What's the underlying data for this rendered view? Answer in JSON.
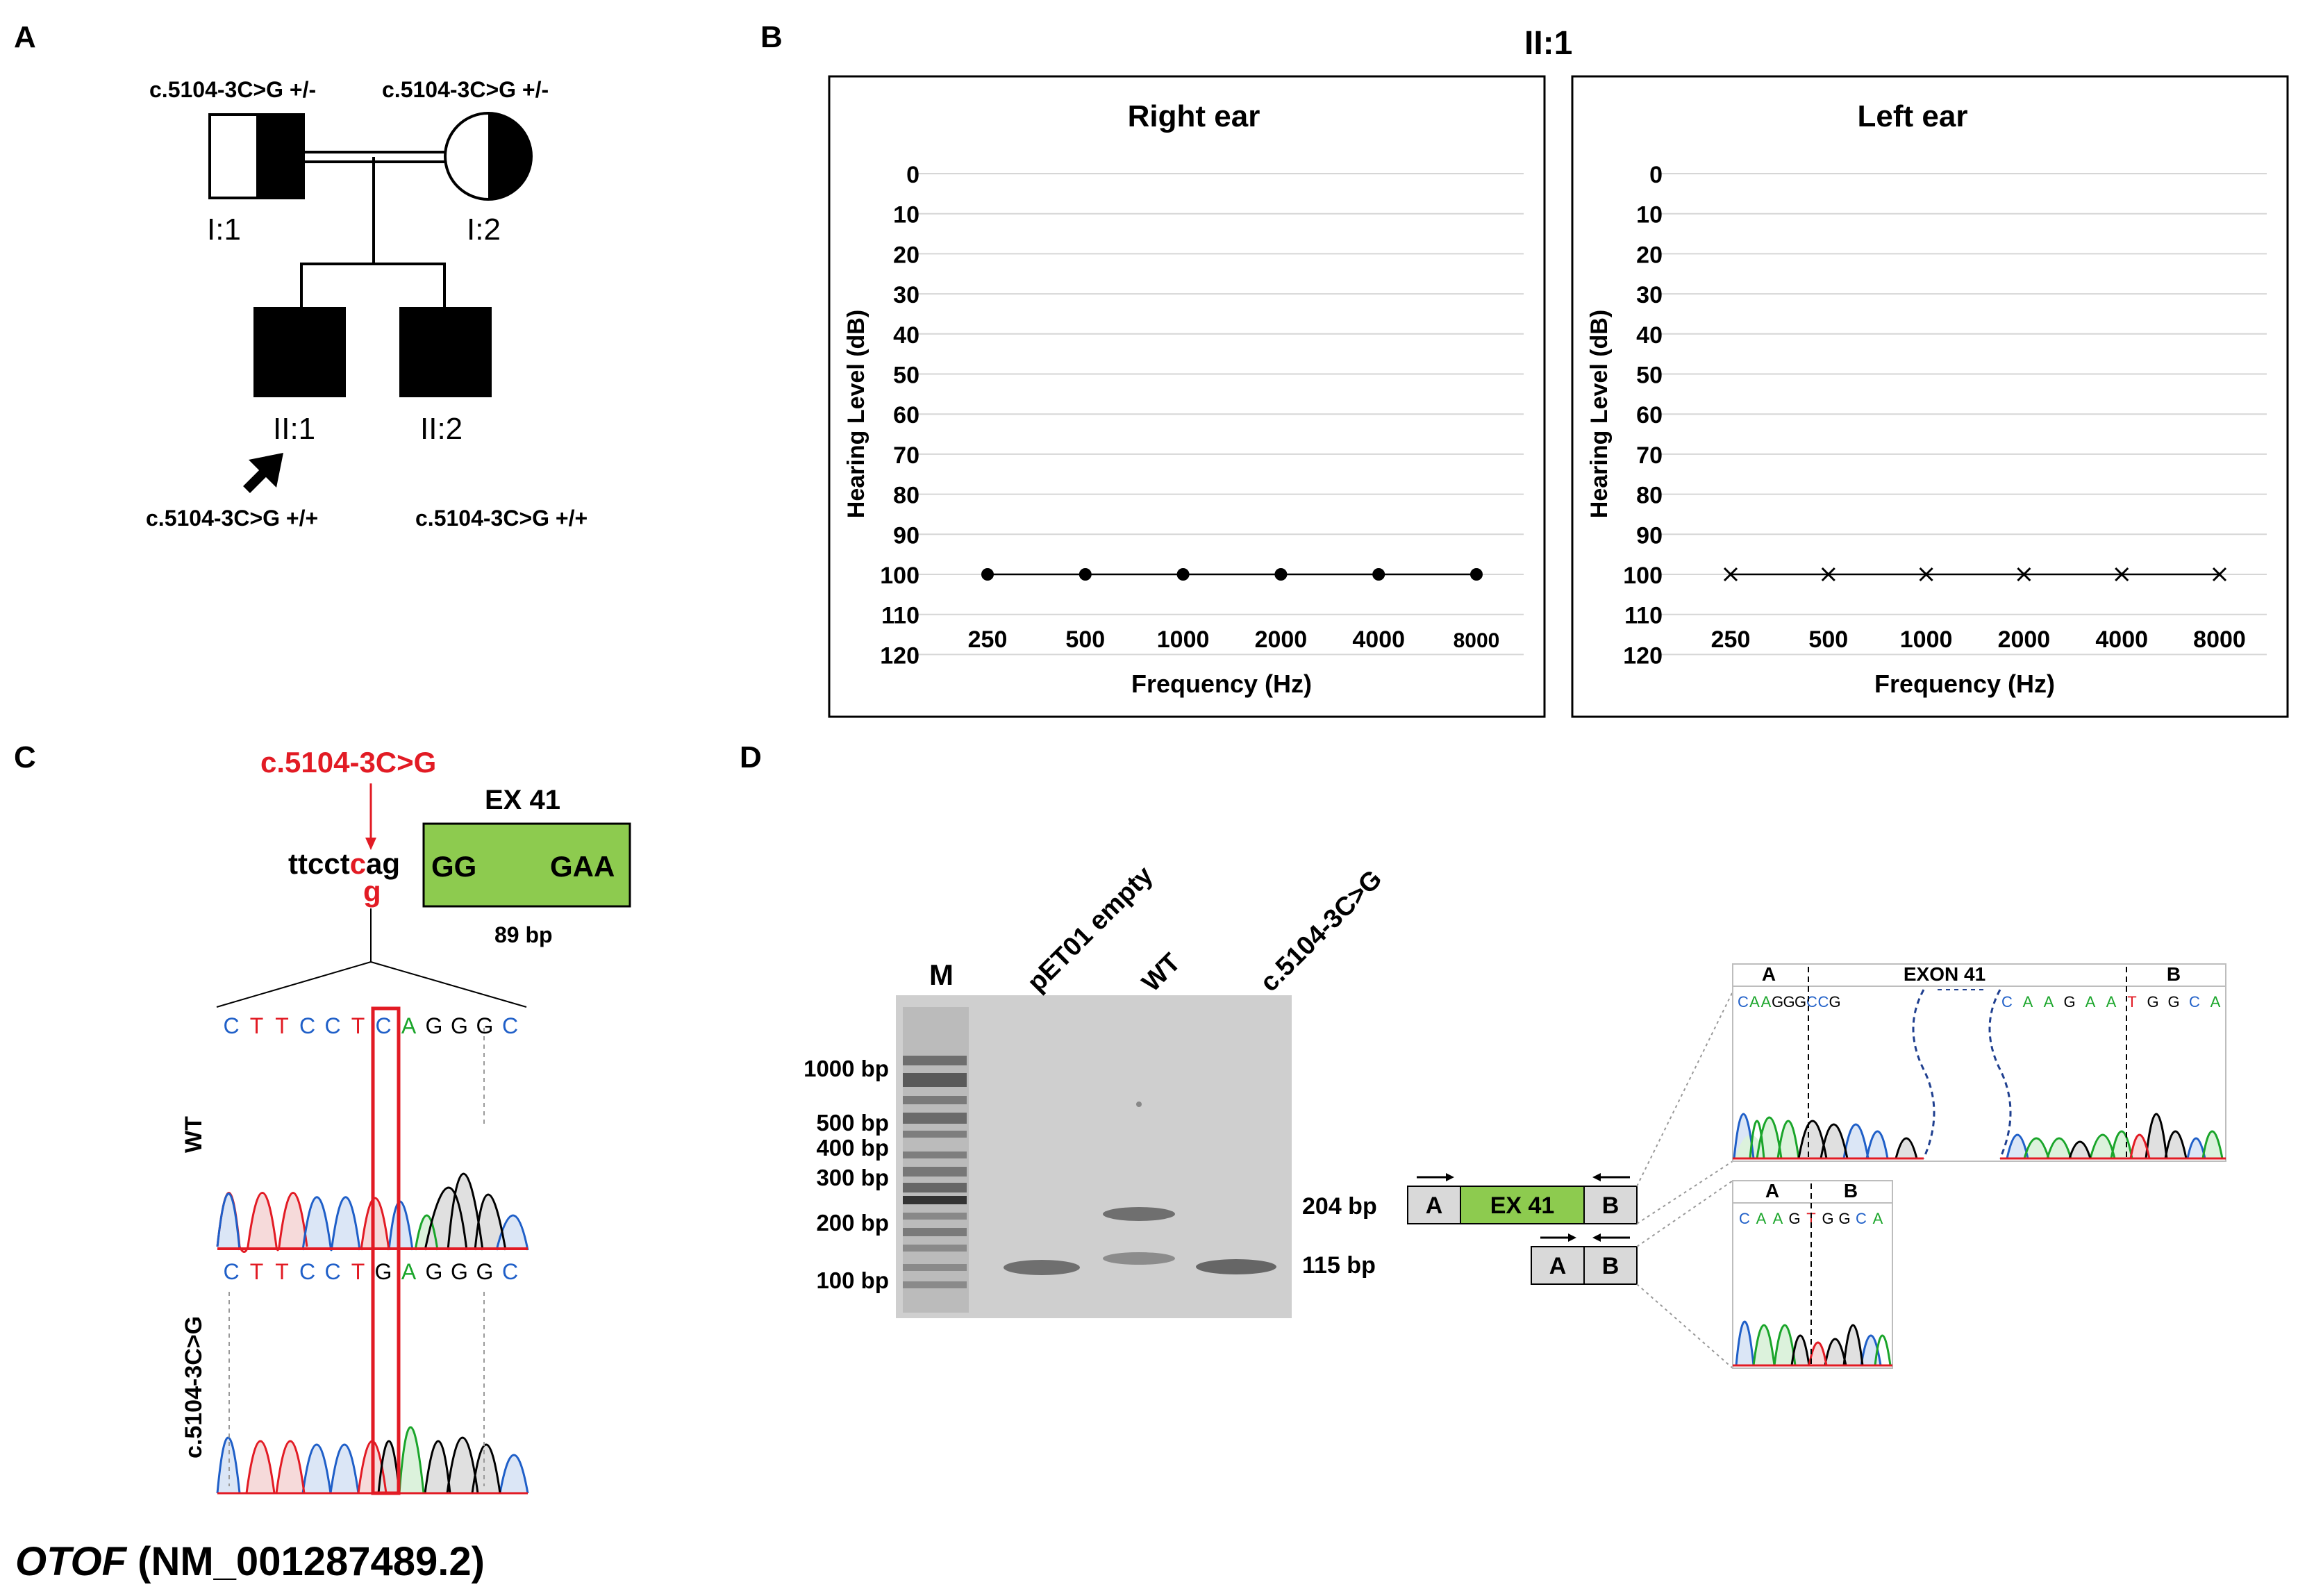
{
  "panelA": {
    "letter": "A",
    "genotype_i1": "c.5104-3C>G +/-",
    "genotype_i2": "c.5104-3C>G +/-",
    "label_i1": "I:1",
    "label_i2": "I:2",
    "label_ii1": "II:1",
    "label_ii2": "II:2",
    "genotype_ii1": "c.5104-3C>G +/+",
    "genotype_ii2": "c.5104-3C>G +/+"
  },
  "panelB": {
    "letter": "B",
    "title": "II:1",
    "left_chart_title": "Right ear",
    "right_chart_title": "Left ear"
  },
  "chart_data": [
    {
      "type": "line",
      "title": "Right ear",
      "xlabel": "Frequency (Hz)",
      "ylabel": "Hearing Level (dB)",
      "categories": [
        "250",
        "500",
        "1000",
        "2000",
        "4000",
        "8000"
      ],
      "yticks": [
        "0",
        "10",
        "20",
        "30",
        "40",
        "50",
        "60",
        "70",
        "80",
        "90",
        "100",
        "110",
        "120"
      ],
      "ylim": [
        0,
        120
      ],
      "yinverted": true,
      "marker": "circle",
      "series": [
        {
          "name": "Right ear",
          "values": [
            100,
            100,
            100,
            100,
            100,
            100
          ]
        }
      ]
    },
    {
      "type": "line",
      "title": "Left ear",
      "xlabel": "Frequency (Hz)",
      "ylabel": "Hearing Level (dB)",
      "categories": [
        "250",
        "500",
        "1000",
        "2000",
        "4000",
        "8000"
      ],
      "yticks": [
        "0",
        "10",
        "20",
        "30",
        "40",
        "50",
        "60",
        "70",
        "80",
        "90",
        "100",
        "110",
        "120"
      ],
      "ylim": [
        0,
        120
      ],
      "yinverted": true,
      "marker": "cross",
      "series": [
        {
          "name": "Left ear",
          "values": [
            100,
            100,
            100,
            100,
            100,
            100
          ]
        }
      ]
    }
  ],
  "panelC": {
    "letter": "C",
    "variant": "c.5104-3C>G",
    "exon_label": "EX 41",
    "intron_seq_1": "ttcct",
    "intron_ref_base": "c",
    "intron_seq_2": "ag",
    "alt_base": "g",
    "exon_start": "GG",
    "exon_end": "GAA",
    "exon_size": "89 bp",
    "bases": [
      "C",
      "T",
      "T",
      "C",
      "C",
      "T",
      "C",
      "A",
      "G",
      "G",
      "G",
      "C"
    ],
    "bases_mut": [
      "C",
      "T",
      "T",
      "C",
      "C",
      "T",
      "G",
      "A",
      "G",
      "G",
      "G",
      "C"
    ],
    "wt_label": "WT",
    "mut_label": "c.5104-3C>G",
    "gene_italic": "OTOF",
    "transcript": " (NM_001287489.2)"
  },
  "panelD": {
    "letter": "D",
    "lane_m": "M",
    "lane_empty": "pET01 empty",
    "lane_wt": "WT",
    "lane_mut": "c.5104-3C>G",
    "ladder": [
      "1000 bp",
      "500 bp",
      "400 bp",
      "300 bp",
      "200 bp",
      "100 bp"
    ],
    "band_204": "204 bp",
    "band_115": "115 bp",
    "box_a": "A",
    "box_ex": "EX 41",
    "box_b": "B",
    "seq1_head_a": "A",
    "seq1_head_exon": "EXON 41",
    "seq1_head_b": "B",
    "seq1_bases_left": [
      "C",
      "A",
      "A",
      "G",
      "G",
      "G",
      "C",
      "C",
      "G"
    ],
    "seq1_bases_right": [
      "C",
      "A",
      "A",
      "G",
      "A",
      "A",
      "T",
      "G",
      "G",
      "C",
      "A"
    ],
    "seq2_head_a": "A",
    "seq2_head_b": "B",
    "seq2_bases": [
      "C",
      "A",
      "A",
      "G",
      "T",
      "G",
      "G",
      "C",
      "A"
    ]
  }
}
